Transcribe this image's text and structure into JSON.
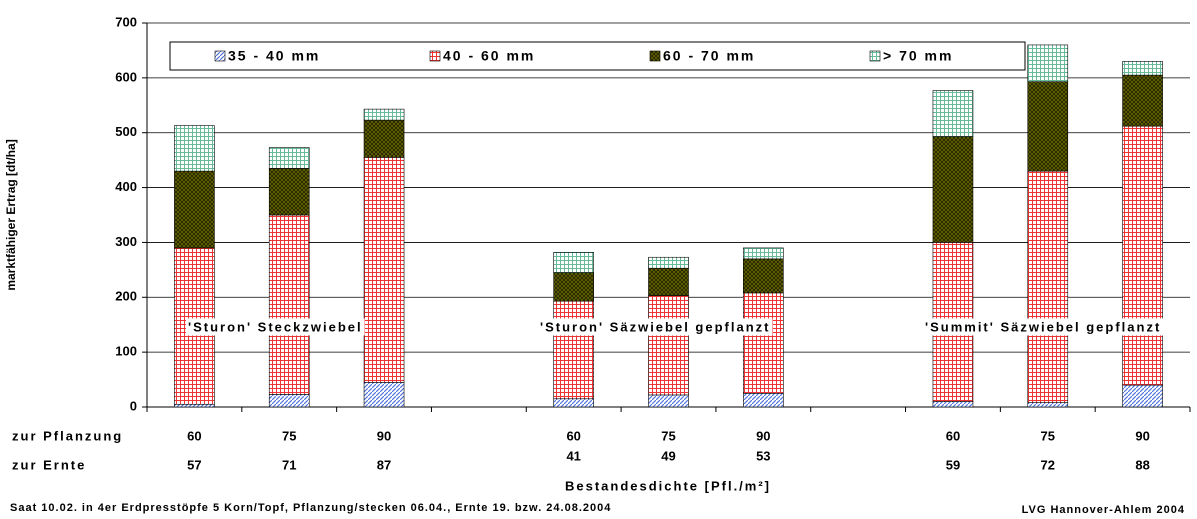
{
  "chart_data": {
    "type": "bar",
    "stacked": true,
    "y_label": "marktfähiger Ertrag [dt/ha]",
    "x_label": "Bestandesdichte [Pfl./m²]",
    "row_labels": [
      "zur Pflanzung",
      "zur Ernte"
    ],
    "categories": [
      "60",
      "75",
      "90",
      null,
      "60",
      "75",
      "90",
      null,
      "60",
      "75",
      "90"
    ],
    "categories_harvest": [
      "57",
      "71",
      "87",
      null,
      "41",
      "49",
      "53",
      null,
      "59",
      "72",
      "88"
    ],
    "series": [
      {
        "name": "35 - 40 mm",
        "color": "#5577dd",
        "pattern": "diagonal",
        "values": [
          5,
          23,
          45,
          null,
          15,
          22,
          25,
          null,
          10,
          8,
          40
        ]
      },
      {
        "name": "40 - 60 mm",
        "color": "#ee3333",
        "pattern": "grid",
        "values": [
          285,
          327,
          410,
          null,
          178,
          181,
          183,
          null,
          290,
          422,
          472
        ]
      },
      {
        "name": "60 - 70 mm",
        "color": "#666600",
        "pattern": "cross",
        "values": [
          140,
          85,
          68,
          null,
          52,
          50,
          62,
          null,
          193,
          163,
          93
        ]
      },
      {
        "name": "> 70 mm",
        "color": "#66bb99",
        "pattern": "grid",
        "values": [
          83,
          38,
          20,
          null,
          37,
          20,
          20,
          null,
          84,
          67,
          25
        ]
      }
    ],
    "group_labels": [
      "'Sturon' Steckzwiebel",
      "'Sturon' Säzwiebel gepflanzt",
      "'Summit' Säzwiebel gepflanzt"
    ],
    "ylim": [
      0,
      700
    ],
    "yticks": [
      0,
      100,
      200,
      300,
      400,
      500,
      600,
      700
    ],
    "grid": true,
    "footnote": "Saat 10.02. in 4er Erdpresstöpfe 5 Korn/Topf, Pflanzung/stecken 06.04., Ernte 19. bzw. 24.08.2004",
    "source": "LVG Hannover-Ahlem 2004"
  }
}
